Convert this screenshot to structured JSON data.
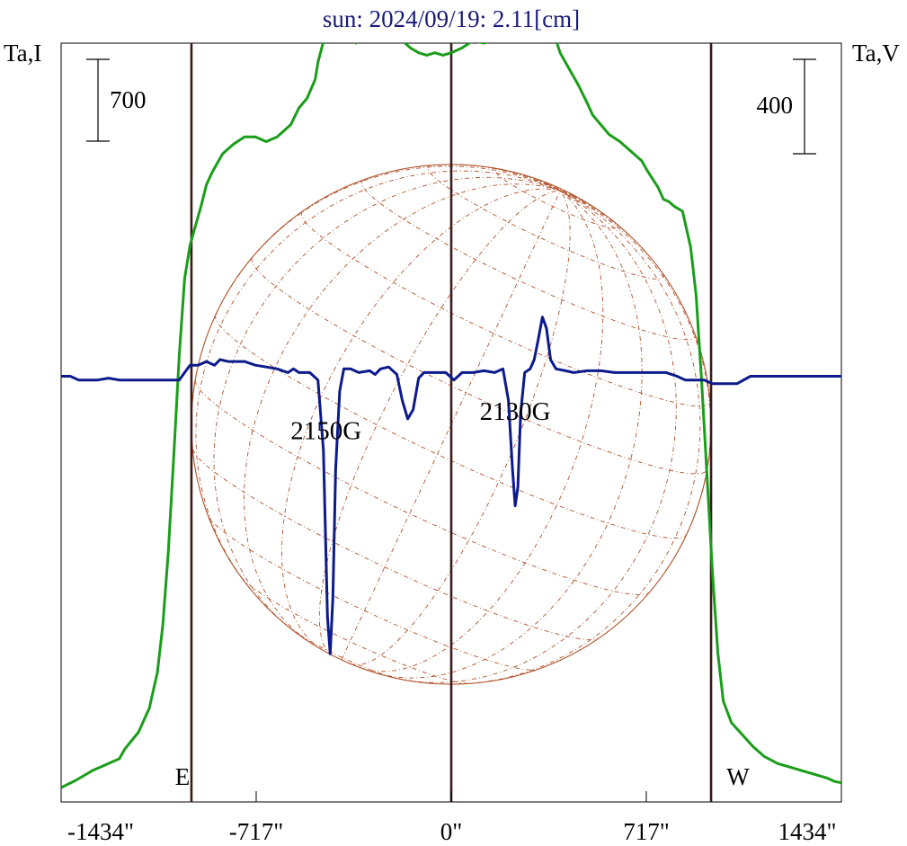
{
  "colors": {
    "intensity": "#1a9e1a",
    "polarization": "#0d1a8c",
    "limb_lines": "#3a1a1a",
    "sun_disk": "#b0522a",
    "title": "#1a1a7a",
    "axes": "#000000"
  },
  "chart_data": {
    "type": "line",
    "title": "sun: 2024/09/19: 2.11[cm]",
    "left_axis_label": "Ta,I",
    "right_axis_label": "Ta,V",
    "scale_bar_left": "700",
    "scale_bar_right": "400",
    "xlim": [
      -1434,
      1434
    ],
    "x_ticks": [
      {
        "value": -1434,
        "label": "-1434\""
      },
      {
        "value": -717,
        "label": "-717\""
      },
      {
        "value": 0,
        "label": "0\""
      },
      {
        "value": 717,
        "label": "717\""
      },
      {
        "value": 1434,
        "label": "1434\""
      }
    ],
    "limb_markers": [
      {
        "x": -955,
        "label": "E"
      },
      {
        "x": 0,
        "label": ""
      },
      {
        "x": 955,
        "label": "W"
      }
    ],
    "annotations": [
      {
        "text": "2150G",
        "x": -460,
        "y": -340
      },
      {
        "text": "2130G",
        "x": 235,
        "y": -235
      }
    ],
    "intensity_ylim": [
      -60,
      3100
    ],
    "polarization_ylim": [
      -2300,
      1800
    ],
    "series": [
      {
        "key": "intensity",
        "axis": "left",
        "points": [
          [
            -1434,
            0
          ],
          [
            -1380,
            30
          ],
          [
            -1320,
            70
          ],
          [
            -1270,
            95
          ],
          [
            -1220,
            120
          ],
          [
            -1200,
            160
          ],
          [
            -1150,
            230
          ],
          [
            -1110,
            330
          ],
          [
            -1080,
            480
          ],
          [
            -1060,
            680
          ],
          [
            -1040,
            980
          ],
          [
            -1020,
            1380
          ],
          [
            -1000,
            1800
          ],
          [
            -980,
            2120
          ],
          [
            -960,
            2260
          ],
          [
            -940,
            2340
          ],
          [
            -920,
            2420
          ],
          [
            -900,
            2510
          ],
          [
            -880,
            2560
          ],
          [
            -860,
            2600
          ],
          [
            -840,
            2640
          ],
          [
            -800,
            2680
          ],
          [
            -760,
            2710
          ],
          [
            -720,
            2710
          ],
          [
            -680,
            2690
          ],
          [
            -640,
            2710
          ],
          [
            -590,
            2760
          ],
          [
            -560,
            2830
          ],
          [
            -530,
            2870
          ],
          [
            -500,
            2950
          ],
          [
            -490,
            3020
          ],
          [
            -460,
            3150
          ],
          [
            -440,
            3250
          ],
          [
            -430,
            3350
          ],
          [
            -415,
            3290
          ],
          [
            -400,
            3270
          ],
          [
            -385,
            3200
          ],
          [
            -370,
            3150
          ],
          [
            -350,
            3100
          ],
          [
            -330,
            3120
          ],
          [
            -300,
            3200
          ],
          [
            -285,
            3290
          ],
          [
            -270,
            3250
          ],
          [
            -250,
            3160
          ],
          [
            -220,
            3130
          ],
          [
            -180,
            3110
          ],
          [
            -150,
            3080
          ],
          [
            -120,
            3060
          ],
          [
            -90,
            3050
          ],
          [
            -60,
            3060
          ],
          [
            -30,
            3050
          ],
          [
            0,
            3060
          ],
          [
            40,
            3080
          ],
          [
            80,
            3110
          ],
          [
            120,
            3100
          ],
          [
            150,
            3110
          ],
          [
            180,
            3160
          ],
          [
            200,
            3220
          ],
          [
            220,
            3300
          ],
          [
            240,
            3330
          ],
          [
            260,
            3320
          ],
          [
            280,
            3250
          ],
          [
            300,
            3270
          ],
          [
            320,
            3320
          ],
          [
            340,
            3320
          ],
          [
            360,
            3230
          ],
          [
            380,
            3130
          ],
          [
            400,
            3060
          ],
          [
            420,
            3020
          ],
          [
            440,
            2980
          ],
          [
            470,
            2920
          ],
          [
            500,
            2850
          ],
          [
            520,
            2800
          ],
          [
            550,
            2760
          ],
          [
            580,
            2720
          ],
          [
            620,
            2690
          ],
          [
            650,
            2660
          ],
          [
            680,
            2630
          ],
          [
            700,
            2610
          ],
          [
            720,
            2570
          ],
          [
            760,
            2500
          ],
          [
            780,
            2450
          ],
          [
            800,
            2440
          ],
          [
            820,
            2420
          ],
          [
            850,
            2400
          ],
          [
            880,
            2250
          ],
          [
            900,
            2050
          ],
          [
            920,
            1700
          ],
          [
            940,
            1300
          ],
          [
            960,
            900
          ],
          [
            980,
            560
          ],
          [
            1000,
            360
          ],
          [
            1030,
            270
          ],
          [
            1070,
            220
          ],
          [
            1110,
            170
          ],
          [
            1150,
            130
          ],
          [
            1200,
            100
          ],
          [
            1260,
            80
          ],
          [
            1320,
            60
          ],
          [
            1380,
            40
          ],
          [
            1410,
            25
          ],
          [
            1434,
            20
          ]
        ]
      },
      {
        "key": "polarization",
        "axis": "right",
        "points": [
          [
            -1434,
            0
          ],
          [
            -1400,
            0
          ],
          [
            -1370,
            -20
          ],
          [
            -1300,
            -20
          ],
          [
            -1260,
            -10
          ],
          [
            -1220,
            -20
          ],
          [
            -1150,
            -20
          ],
          [
            -1080,
            -20
          ],
          [
            -1040,
            -20
          ],
          [
            -1000,
            -20
          ],
          [
            -980,
            20
          ],
          [
            -960,
            60
          ],
          [
            -930,
            60
          ],
          [
            -900,
            80
          ],
          [
            -870,
            60
          ],
          [
            -850,
            90
          ],
          [
            -820,
            80
          ],
          [
            -760,
            80
          ],
          [
            -720,
            60
          ],
          [
            -680,
            50
          ],
          [
            -640,
            40
          ],
          [
            -600,
            20
          ],
          [
            -580,
            40
          ],
          [
            -560,
            20
          ],
          [
            -520,
            20
          ],
          [
            -490,
            -20
          ],
          [
            -470,
            -400
          ],
          [
            -455,
            -1300
          ],
          [
            -445,
            -1500
          ],
          [
            -435,
            -1200
          ],
          [
            -425,
            -500
          ],
          [
            -410,
            -80
          ],
          [
            -395,
            40
          ],
          [
            -370,
            40
          ],
          [
            -340,
            20
          ],
          [
            -300,
            30
          ],
          [
            -280,
            10
          ],
          [
            -260,
            40
          ],
          [
            -230,
            50
          ],
          [
            -200,
            10
          ],
          [
            -180,
            -130
          ],
          [
            -160,
            -230
          ],
          [
            -140,
            -180
          ],
          [
            -120,
            -10
          ],
          [
            -100,
            20
          ],
          [
            -60,
            20
          ],
          [
            -20,
            20
          ],
          [
            10,
            -20
          ],
          [
            40,
            20
          ],
          [
            80,
            20
          ],
          [
            120,
            30
          ],
          [
            160,
            20
          ],
          [
            190,
            40
          ],
          [
            210,
            -130
          ],
          [
            225,
            -500
          ],
          [
            235,
            -700
          ],
          [
            245,
            -600
          ],
          [
            255,
            -200
          ],
          [
            270,
            20
          ],
          [
            290,
            40
          ],
          [
            305,
            90
          ],
          [
            320,
            200
          ],
          [
            335,
            320
          ],
          [
            350,
            260
          ],
          [
            365,
            90
          ],
          [
            385,
            40
          ],
          [
            420,
            30
          ],
          [
            450,
            20
          ],
          [
            500,
            30
          ],
          [
            550,
            30
          ],
          [
            600,
            20
          ],
          [
            660,
            20
          ],
          [
            720,
            20
          ],
          [
            790,
            20
          ],
          [
            830,
            0
          ],
          [
            860,
            -20
          ],
          [
            900,
            -20
          ],
          [
            930,
            -20
          ],
          [
            960,
            -40
          ],
          [
            1000,
            -40
          ],
          [
            1050,
            -40
          ],
          [
            1100,
            0
          ],
          [
            1200,
            0
          ],
          [
            1300,
            0
          ],
          [
            1434,
            0
          ]
        ]
      }
    ]
  }
}
